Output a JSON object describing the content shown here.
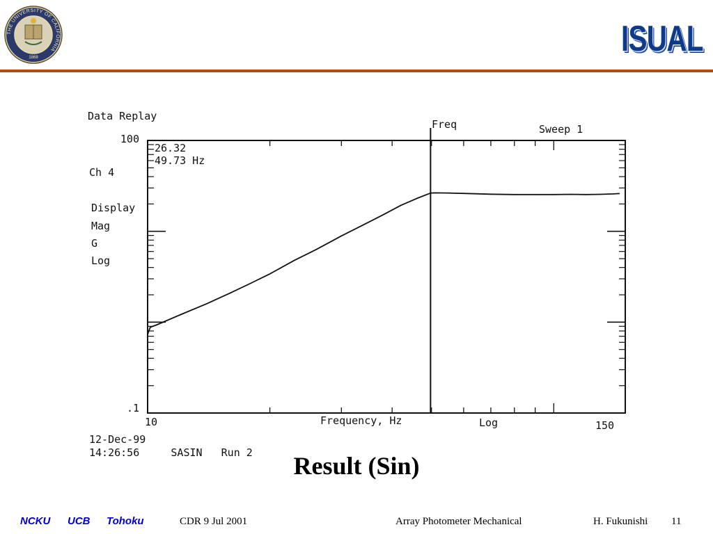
{
  "header": {
    "seal_text": "THE UNIVERSITY OF CALIFORNIA",
    "seal_year": "1868",
    "logo_text": "ISUAL"
  },
  "panel": {
    "title": "Data Replay",
    "readout_value": "26.32",
    "readout_freq": "49.73 Hz",
    "channel": "Ch 4",
    "display_items": [
      "Display",
      "Mag",
      "G",
      "Log"
    ],
    "mode": "Freq",
    "sweep": "Sweep  1",
    "date": "12-Dec-99",
    "time_line": "14:26:56     SASIN   Run 2"
  },
  "chart_data": {
    "type": "line",
    "xlabel": "Frequency, Hz",
    "xscale": "Log",
    "xlim": [
      10,
      150
    ],
    "ylim": [
      0.1,
      100
    ],
    "yscale": "log",
    "y_tick_labels": [
      "100",
      ".1"
    ],
    "x_tick_labels": [
      "10",
      "150"
    ],
    "cursor_x": 49.73,
    "series": [
      {
        "x": [
          10,
          10.15,
          10.5,
          12,
          14,
          16,
          18,
          20,
          23,
          26,
          30,
          34,
          38,
          42,
          46,
          49.73,
          51,
          55,
          60,
          70,
          80,
          90,
          100,
          110,
          120,
          130,
          140,
          145
        ],
        "y": [
          0.73,
          0.88,
          0.93,
          1.2,
          1.6,
          2.1,
          2.7,
          3.4,
          4.8,
          6.3,
          8.9,
          11.8,
          15.2,
          19.3,
          23.0,
          26.32,
          26.5,
          26.4,
          26.1,
          25.6,
          25.4,
          25.4,
          25.4,
          25.5,
          25.4,
          25.5,
          25.8,
          26.0
        ]
      }
    ]
  },
  "title": "Result (Sin)",
  "footer": {
    "inst1": "NCKU",
    "inst2": "UCB",
    "inst3": "Tohoku",
    "event": "CDR  9 Jul 2001",
    "topic": "Array Photometer Mechanical",
    "author": "H. Fukunishi",
    "page": "11"
  }
}
